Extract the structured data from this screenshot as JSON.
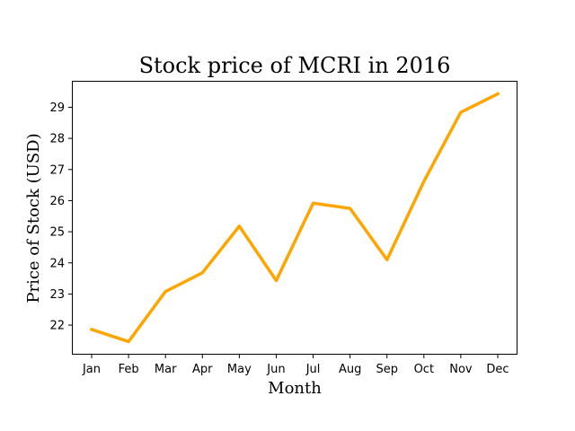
{
  "chart_data": {
    "type": "line",
    "title": "Stock price of MCRI in 2016",
    "xlabel": "Month",
    "ylabel": "Price of Stock (USD)",
    "categories": [
      "Jan",
      "Feb",
      "Mar",
      "Apr",
      "May",
      "Jun",
      "Jul",
      "Aug",
      "Sep",
      "Oct",
      "Nov",
      "Dec"
    ],
    "series": [
      {
        "values": [
          21.86,
          21.47,
          23.08,
          23.68,
          25.18,
          23.43,
          25.92,
          25.75,
          24.1,
          26.62,
          28.84,
          29.43
        ],
        "color": "#FFA500"
      }
    ],
    "yticks": [
      22,
      23,
      24,
      25,
      26,
      27,
      28,
      29
    ],
    "ylim": [
      21.05,
      29.85
    ],
    "grid": false,
    "legend": "none"
  }
}
